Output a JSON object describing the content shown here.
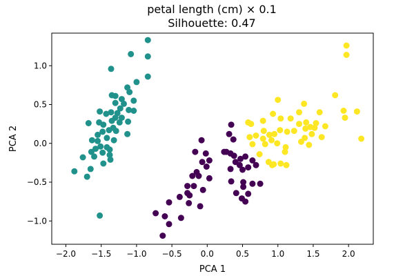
{
  "chart_data": {
    "type": "scatter",
    "title": "petal length (cm) × 0.1",
    "subtitle": "Silhouette: 0.47",
    "xlabel": "PCA 1",
    "ylabel": "PCA 2",
    "xlim": [
      -2.2,
      2.35
    ],
    "ylim": [
      -1.3,
      1.42
    ],
    "xticks": [
      -2.0,
      -1.5,
      -1.0,
      -0.5,
      0.0,
      0.5,
      1.0,
      1.5,
      2.0
    ],
    "xtick_labels": [
      "−2.0",
      "−1.5",
      "−1.0",
      "−0.5",
      "0.0",
      "0.5",
      "1.0",
      "1.5",
      "2.0"
    ],
    "yticks": [
      -1.0,
      -0.5,
      0.0,
      0.5,
      1.0
    ],
    "ytick_labels": [
      "−1.0",
      "−0.5",
      "0.0",
      "0.5",
      "1.0"
    ],
    "grid": false,
    "legend": null,
    "series": [
      {
        "color": "#21918c",
        "points": [
          [
            -0.84,
            1.33
          ],
          [
            -1.08,
            1.15
          ],
          [
            -0.84,
            1.12
          ],
          [
            -1.36,
            0.96
          ],
          [
            -0.84,
            0.86
          ],
          [
            -1.0,
            0.79
          ],
          [
            -1.1,
            0.66
          ],
          [
            -1.13,
            0.72
          ],
          [
            -1.35,
            0.62
          ],
          [
            -1.3,
            0.61
          ],
          [
            -1.21,
            0.57
          ],
          [
            -1.04,
            0.55
          ],
          [
            -1.3,
            0.52
          ],
          [
            -1.18,
            0.51
          ],
          [
            -1.23,
            0.45
          ],
          [
            -1.04,
            0.42
          ],
          [
            -1.52,
            0.41
          ],
          [
            -1.36,
            0.4
          ],
          [
            -1.27,
            0.39
          ],
          [
            -1.11,
            0.43
          ],
          [
            -1.43,
            0.38
          ],
          [
            -1.3,
            0.33
          ],
          [
            -1.21,
            0.33
          ],
          [
            -1.35,
            0.29
          ],
          [
            -1.24,
            0.27
          ],
          [
            -1.12,
            0.28
          ],
          [
            -1.53,
            0.27
          ],
          [
            -1.47,
            0.24
          ],
          [
            -1.68,
            0.26
          ],
          [
            -1.33,
            0.2
          ],
          [
            -1.39,
            0.17
          ],
          [
            -1.29,
            0.16
          ],
          [
            -1.48,
            0.15
          ],
          [
            -1.13,
            0.12
          ],
          [
            -1.55,
            0.11
          ],
          [
            -1.42,
            0.07
          ],
          [
            -1.63,
            0.04
          ],
          [
            -1.55,
            0.03
          ],
          [
            -1.32,
            0.04
          ],
          [
            -1.51,
            -0.04
          ],
          [
            -1.42,
            -0.05
          ],
          [
            -1.58,
            -0.07
          ],
          [
            -1.38,
            -0.08
          ],
          [
            -1.64,
            -0.11
          ],
          [
            -1.48,
            -0.12
          ],
          [
            -1.38,
            -0.15
          ],
          [
            -1.6,
            -0.17
          ],
          [
            -1.76,
            -0.18
          ],
          [
            -1.37,
            -0.21
          ],
          [
            -1.47,
            -0.26
          ],
          [
            -1.65,
            -0.33
          ],
          [
            -1.88,
            -0.36
          ],
          [
            -1.7,
            -0.43
          ],
          [
            -1.52,
            -0.93
          ]
        ]
      },
      {
        "color": "#440154",
        "points": [
          [
            0.34,
            0.24
          ],
          [
            0.31,
            0.12
          ],
          [
            0.37,
            0.05
          ],
          [
            0.24,
            -0.11
          ],
          [
            0.27,
            -0.11
          ],
          [
            0.33,
            -0.13
          ],
          [
            0.38,
            -0.16
          ],
          [
            0.54,
            -0.17
          ],
          [
            0.47,
            -0.2
          ],
          [
            0.64,
            -0.22
          ],
          [
            0.4,
            -0.24
          ],
          [
            0.46,
            -0.28
          ],
          [
            0.33,
            -0.33
          ],
          [
            0.5,
            -0.34
          ],
          [
            0.58,
            -0.31
          ],
          [
            0.69,
            -0.28
          ],
          [
            0.34,
            -0.49
          ],
          [
            0.51,
            -0.5
          ],
          [
            0.51,
            -0.56
          ],
          [
            0.64,
            -0.52
          ],
          [
            0.75,
            -0.52
          ],
          [
            0.41,
            -0.64
          ],
          [
            0.58,
            -0.65
          ],
          [
            0.54,
            -0.75
          ],
          [
            0.49,
            -0.71
          ],
          [
            -0.08,
            0.04
          ],
          [
            -0.17,
            -0.11
          ],
          [
            -0.02,
            -0.13
          ],
          [
            0.03,
            -0.22
          ],
          [
            -0.07,
            -0.24
          ],
          [
            -0.01,
            -0.3
          ],
          [
            -0.15,
            -0.37
          ],
          [
            -0.21,
            -0.42
          ],
          [
            -0.12,
            -0.42
          ],
          [
            0.03,
            -0.45
          ],
          [
            -0.19,
            -0.55
          ],
          [
            -0.28,
            -0.55
          ],
          [
            -0.06,
            -0.6
          ],
          [
            -0.28,
            -0.64
          ],
          [
            -0.25,
            -0.67
          ],
          [
            -0.39,
            -0.69
          ],
          [
            -0.26,
            -0.77
          ],
          [
            -0.1,
            -0.81
          ],
          [
            -0.54,
            -0.76
          ],
          [
            -0.37,
            -0.96
          ],
          [
            -0.6,
            -0.94
          ],
          [
            -0.73,
            -0.9
          ],
          [
            -0.54,
            -1.04
          ],
          [
            -0.63,
            -1.19
          ]
        ]
      },
      {
        "color": "#fde725",
        "points": [
          [
            1.97,
            1.26
          ],
          [
            1.97,
            1.14
          ],
          [
            1.81,
            0.62
          ],
          [
            1.0,
            0.56
          ],
          [
            1.37,
            0.51
          ],
          [
            1.93,
            0.42
          ],
          [
            2.12,
            0.41
          ],
          [
            1.3,
            0.4
          ],
          [
            1.59,
            0.4
          ],
          [
            1.95,
            0.33
          ],
          [
            0.93,
            0.38
          ],
          [
            1.04,
            0.32
          ],
          [
            1.18,
            0.32
          ],
          [
            0.79,
            0.29
          ],
          [
            0.58,
            0.27
          ],
          [
            1.4,
            0.27
          ],
          [
            1.54,
            0.26
          ],
          [
            1.3,
            0.25
          ],
          [
            0.62,
            0.25
          ],
          [
            1.67,
            0.22
          ],
          [
            1.46,
            0.21
          ],
          [
            1.39,
            0.19
          ],
          [
            1.52,
            0.2
          ],
          [
            1.13,
            0.15
          ],
          [
            0.8,
            0.16
          ],
          [
            1.03,
            0.17
          ],
          [
            1.23,
            0.16
          ],
          [
            0.95,
            0.12
          ],
          [
            0.88,
            0.11
          ],
          [
            1.48,
            0.12
          ],
          [
            0.69,
            0.1
          ],
          [
            0.6,
            0.08
          ],
          [
            1.38,
            0.07
          ],
          [
            1.62,
            0.08
          ],
          [
            0.79,
            0.06
          ],
          [
            0.91,
            0.04
          ],
          [
            2.18,
            0.06
          ],
          [
            1.33,
            0.02
          ],
          [
            0.99,
            0.0
          ],
          [
            1.11,
            -0.05
          ],
          [
            1.44,
            -0.02
          ],
          [
            0.64,
            -0.01
          ],
          [
            0.82,
            -0.01
          ],
          [
            1.1,
            -0.11
          ],
          [
            0.74,
            -0.14
          ],
          [
            1.04,
            -0.26
          ],
          [
            1.12,
            -0.28
          ],
          [
            0.92,
            -0.28
          ],
          [
            0.87,
            -0.24
          ],
          [
            0.94,
            -0.27
          ]
        ]
      }
    ]
  }
}
